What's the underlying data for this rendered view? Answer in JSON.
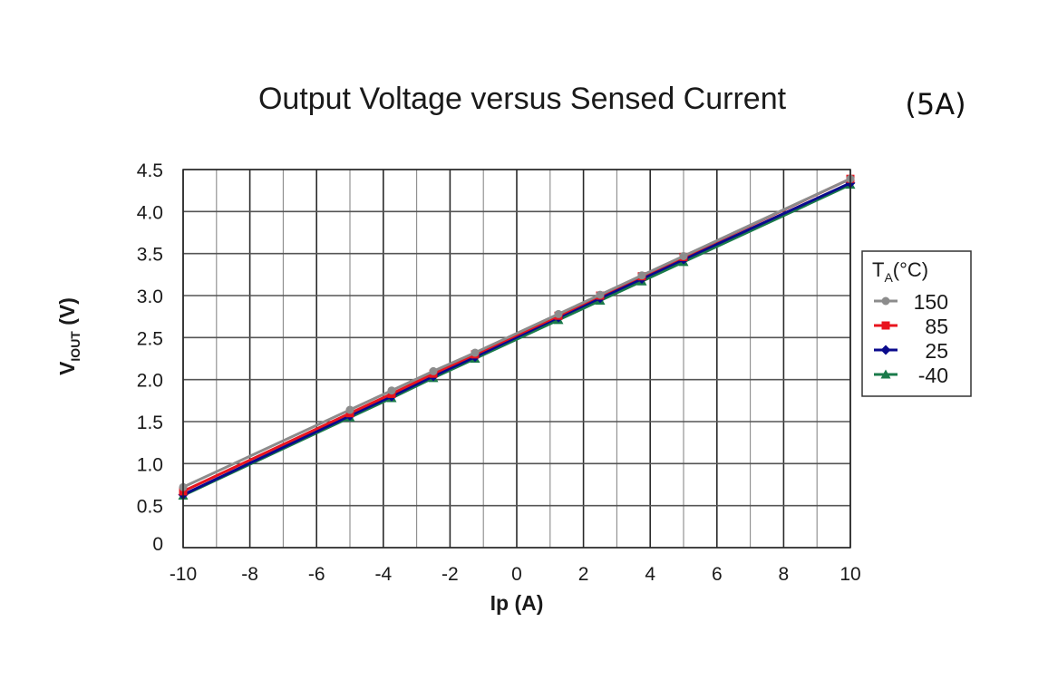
{
  "chart_data": {
    "type": "line",
    "title": "Output Voltage versus Sensed Current",
    "badge": "(5A)",
    "xlabel": "Ip (A)",
    "ylabel": "V",
    "ylabel_sub": "IOUT",
    "ylabel_unit": " (V)",
    "xlim": [
      -10,
      10
    ],
    "ylim": [
      0,
      4.5
    ],
    "xticks": [
      -10,
      -8,
      -6,
      -4,
      -2,
      0,
      2,
      4,
      6,
      8,
      10
    ],
    "xtick_labels": [
      "-10",
      "-8",
      "-6",
      "-4",
      "-2",
      "0",
      "2",
      "4",
      "6",
      "8",
      "10"
    ],
    "yticks": [
      0,
      0.5,
      1.0,
      1.5,
      2.0,
      2.5,
      3.0,
      3.5,
      4.0,
      4.5
    ],
    "ytick_labels": [
      "0",
      "0.5",
      "1.0",
      "1.5",
      "2.0",
      "2.5",
      "3.0",
      "3.5",
      "4.0",
      "4.5"
    ],
    "grid": true,
    "legend": {
      "placement": "right",
      "title": "T",
      "title_sub": "A",
      "title_unit": "(°C)"
    },
    "series": [
      {
        "name": "150",
        "color": "#8c8c8c",
        "marker": "circle",
        "x": [
          -10,
          -5,
          -3.75,
          -2.5,
          -1.25,
          1.25,
          2.5,
          3.75,
          5,
          10
        ],
        "y": [
          0.72,
          1.64,
          1.87,
          2.1,
          2.32,
          2.78,
          3.01,
          3.24,
          3.47,
          4.39
        ]
      },
      {
        "name": "85",
        "color": "#e8141e",
        "marker": "square",
        "x": [
          -10,
          -5,
          -3.75,
          -2.5,
          -1.25,
          1.25,
          2.5,
          3.75,
          5,
          10
        ],
        "y": [
          0.67,
          1.6,
          1.83,
          2.07,
          2.3,
          2.76,
          3.0,
          3.23,
          3.46,
          4.39
        ]
      },
      {
        "name": "25",
        "color": "#0a0a8c",
        "marker": "diamond",
        "x": [
          -10,
          -5,
          -3.75,
          -2.5,
          -1.25,
          1.25,
          2.5,
          3.75,
          5,
          10
        ],
        "y": [
          0.63,
          1.57,
          1.8,
          2.04,
          2.27,
          2.74,
          2.97,
          3.2,
          3.43,
          4.34
        ]
      },
      {
        "name": "-40",
        "color": "#1a7a4a",
        "marker": "triangle",
        "x": [
          -10,
          -5,
          -3.75,
          -2.5,
          -1.25,
          1.25,
          2.5,
          3.75,
          5,
          10
        ],
        "y": [
          0.62,
          1.55,
          1.78,
          2.02,
          2.25,
          2.71,
          2.94,
          3.17,
          3.4,
          4.32
        ]
      }
    ]
  }
}
